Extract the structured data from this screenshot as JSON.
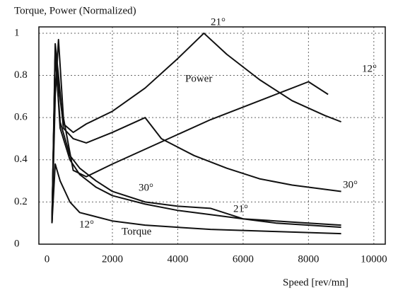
{
  "chart_data": {
    "type": "line",
    "title": "Torque, Power (Normalized)",
    "x_label": "Speed [rev/mn]",
    "annotations": [
      "Power",
      "Torque"
    ],
    "xlim": [
      -250,
      10350
    ],
    "xticks": [
      0,
      2000,
      4000,
      6000,
      8000,
      10000
    ],
    "ylim": [
      0,
      1.03
    ],
    "yticks": [
      0,
      0.2,
      0.4,
      0.6,
      0.8,
      1
    ],
    "grid": true,
    "series": [
      {
        "name": "21°",
        "color": "#111111",
        "x": [
          150,
          250,
          350,
          500,
          800,
          1200,
          2000,
          3000,
          4000,
          4800,
          5500,
          6500,
          7500,
          8500,
          9000
        ],
        "values": [
          0.1,
          0.9,
          0.75,
          0.57,
          0.53,
          0.57,
          0.63,
          0.74,
          0.88,
          1.0,
          0.9,
          0.78,
          0.68,
          0.61,
          0.58
        ]
      },
      {
        "name": "12°",
        "color": "#111111",
        "x": [
          150,
          250,
          350,
          500,
          800,
          1200,
          2000,
          3000,
          4000,
          5000,
          6000,
          7000,
          8000,
          8600
        ],
        "values": [
          0.1,
          0.7,
          0.97,
          0.6,
          0.35,
          0.32,
          0.38,
          0.45,
          0.52,
          0.59,
          0.65,
          0.71,
          0.77,
          0.71
        ]
      },
      {
        "name": "30°",
        "color": "#111111",
        "x": [
          150,
          250,
          350,
          500,
          800,
          1200,
          2000,
          3000,
          3500,
          4500,
          5500,
          6500,
          7500,
          9000
        ],
        "values": [
          0.1,
          0.95,
          0.8,
          0.55,
          0.5,
          0.48,
          0.53,
          0.6,
          0.5,
          0.42,
          0.36,
          0.31,
          0.28,
          0.25
        ]
      },
      {
        "name": "30°",
        "color": "#111111",
        "x": [
          150,
          250,
          400,
          700,
          1000,
          1500,
          2000,
          3000,
          4000,
          5000,
          6000,
          7000,
          8000,
          9000
        ],
        "values": [
          0.1,
          0.92,
          0.55,
          0.4,
          0.33,
          0.27,
          0.23,
          0.19,
          0.16,
          0.14,
          0.12,
          0.11,
          0.1,
          0.09
        ]
      },
      {
        "name": "21°",
        "color": "#111111",
        "x": [
          150,
          250,
          400,
          700,
          1000,
          1500,
          2000,
          3000,
          4000,
          5000,
          6000,
          7000,
          8000,
          9000
        ],
        "values": [
          0.1,
          0.9,
          0.58,
          0.42,
          0.36,
          0.3,
          0.25,
          0.2,
          0.18,
          0.17,
          0.12,
          0.1,
          0.09,
          0.08
        ]
      },
      {
        "name": "12°",
        "color": "#111111",
        "x": [
          150,
          250,
          400,
          700,
          1000,
          1500,
          2000,
          3000,
          4000,
          5000,
          6000,
          7000,
          8000,
          9000
        ],
        "values": [
          0.1,
          0.38,
          0.3,
          0.2,
          0.15,
          0.13,
          0.11,
          0.09,
          0.08,
          0.07,
          0.065,
          0.06,
          0.055,
          0.05
        ]
      }
    ]
  }
}
